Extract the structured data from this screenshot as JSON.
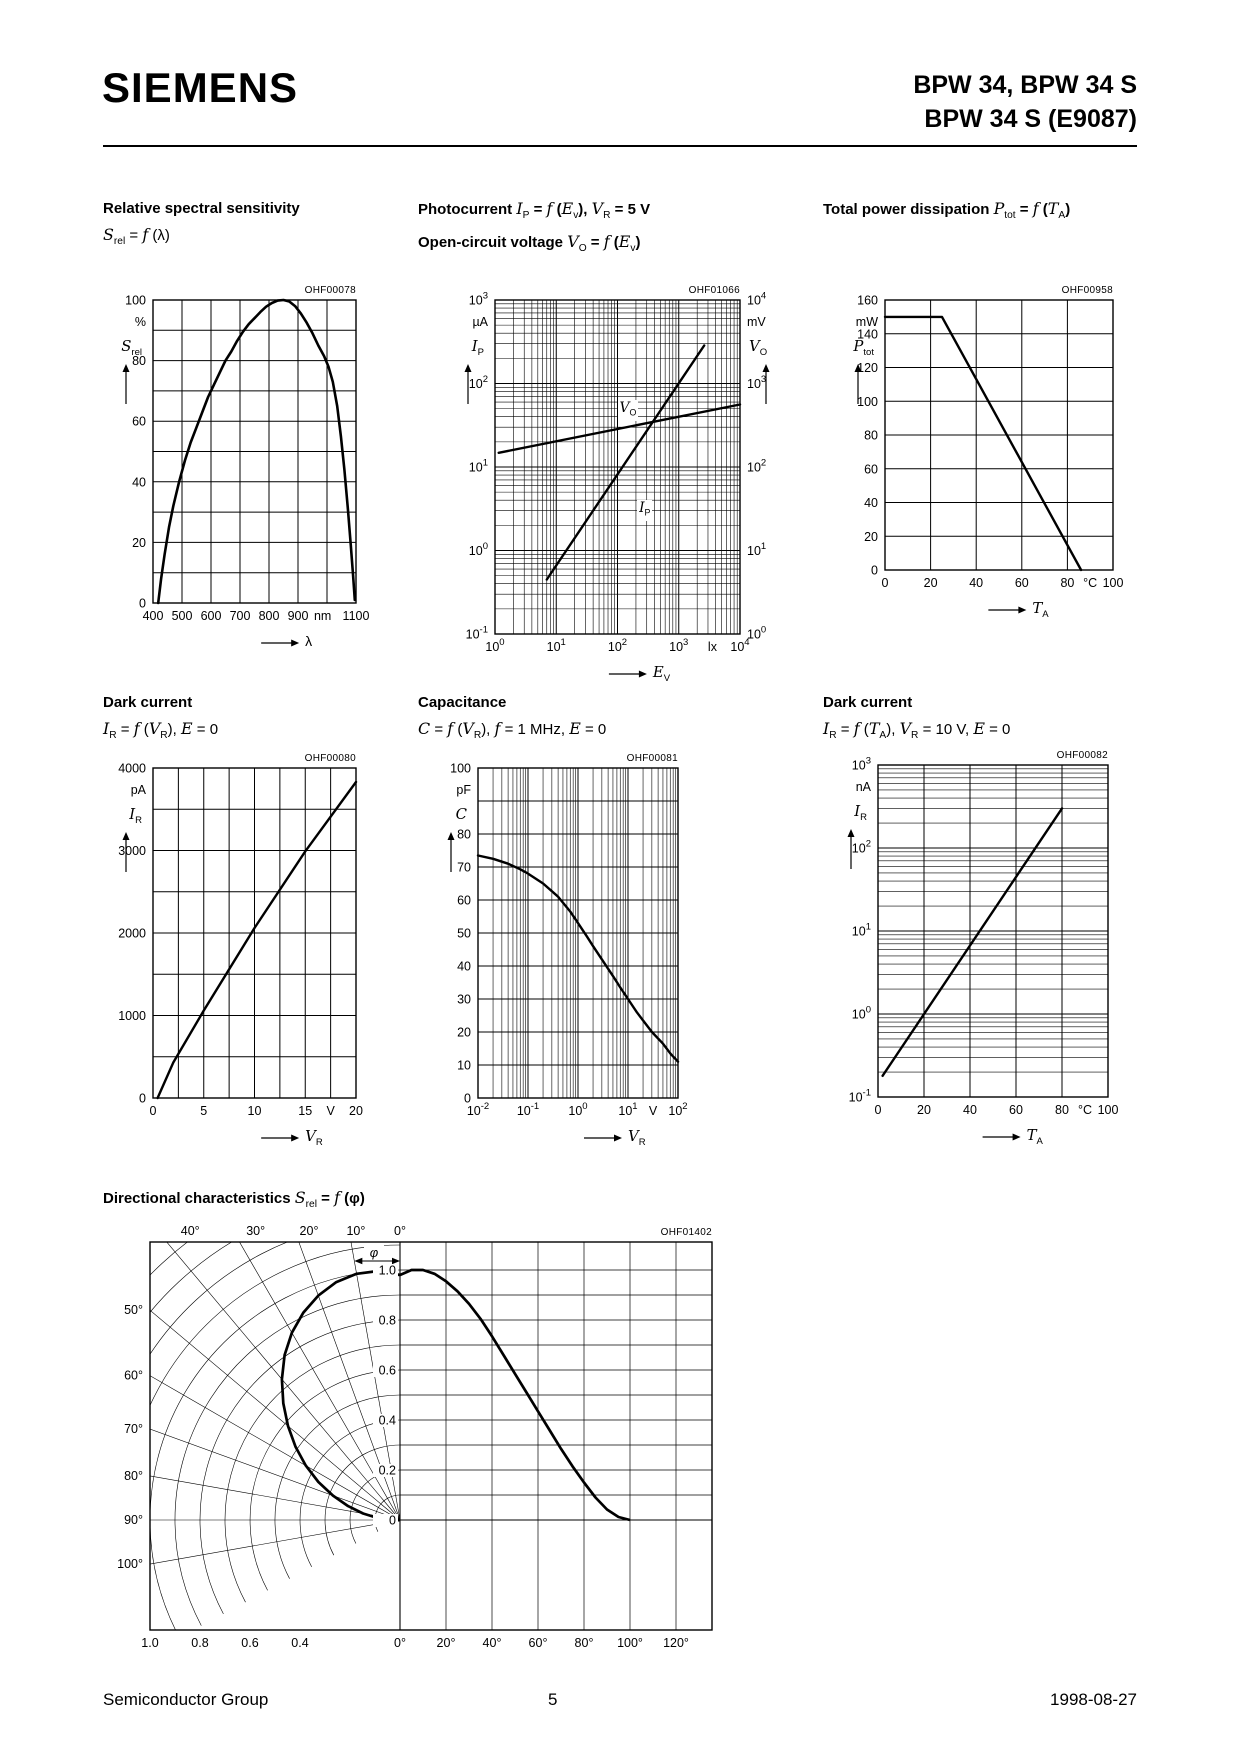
{
  "header": {
    "brand": "SIEMENS",
    "line1": "BPW 34, BPW 34 S",
    "line2": "BPW 34 S (E9087)"
  },
  "footer": {
    "left": "Semiconductor Group",
    "page": "5",
    "right": "1998-08-27"
  },
  "accent_color": "#000000",
  "chart_data": [
    {
      "key": "spectral",
      "type": "line",
      "code": "OHF00078",
      "title": "Relative spectral sensitivity",
      "subtitle": "*S*~rel~ = *f*  (λ)",
      "x": {
        "log": false,
        "min": 400,
        "max": 1100,
        "step": 100,
        "axis": "λ",
        "ticks": [
          {
            "v": 400,
            "t": "400"
          },
          {
            "v": 500,
            "t": "500"
          },
          {
            "v": 600,
            "t": "600"
          },
          {
            "v": 700,
            "t": "700"
          },
          {
            "v": 800,
            "t": "800"
          },
          {
            "v": 900,
            "t": "900"
          },
          {
            "v": 985,
            "t": "nm"
          },
          {
            "v": 1100,
            "t": "1100"
          }
        ]
      },
      "y": {
        "log": false,
        "min": 0,
        "max": 100,
        "step": 10,
        "unit": "%",
        "axis": "*S*~rel~",
        "ticks": [
          {
            "v": 100,
            "t": "100"
          },
          {
            "v": 80,
            "t": "80"
          },
          {
            "v": 60,
            "t": "60"
          },
          {
            "v": 40,
            "t": "40"
          },
          {
            "v": 20,
            "t": "20"
          },
          {
            "v": 0,
            "t": "0"
          }
        ]
      },
      "series": [
        {
          "name": "S_rel vs wavelength",
          "w": 2.6,
          "points": [
            [
              418,
              0
            ],
            [
              428,
              8
            ],
            [
              440,
              16
            ],
            [
              455,
              25
            ],
            [
              470,
              32
            ],
            [
              490,
              40
            ],
            [
              510,
              47
            ],
            [
              530,
              53
            ],
            [
              550,
              58
            ],
            [
              570,
              63
            ],
            [
              590,
              68
            ],
            [
              610,
              72
            ],
            [
              630,
              76
            ],
            [
              650,
              80
            ],
            [
              670,
              83
            ],
            [
              690,
              86.5
            ],
            [
              710,
              89.5
            ],
            [
              730,
              92
            ],
            [
              750,
              94
            ],
            [
              770,
              96
            ],
            [
              790,
              97.8
            ],
            [
              810,
              99
            ],
            [
              830,
              99.8
            ],
            [
              850,
              100
            ],
            [
              870,
              99.5
            ],
            [
              890,
              98
            ],
            [
              910,
              95.5
            ],
            [
              930,
              92.5
            ],
            [
              950,
              89
            ],
            [
              970,
              85
            ],
            [
              990,
              81.5
            ],
            [
              1005,
              78
            ],
            [
              1020,
              73
            ],
            [
              1035,
              65
            ],
            [
              1048,
              55
            ],
            [
              1060,
              44
            ],
            [
              1072,
              31
            ],
            [
              1082,
              19
            ],
            [
              1090,
              9
            ],
            [
              1096,
              1
            ]
          ]
        }
      ]
    },
    {
      "key": "photocurrent",
      "type": "line",
      "code": "OHF01066",
      "title": "Photocurrent *I*~P~ = *f*  (*E*~v~), *V*~R~ = 5 V",
      "subtitle": "Open-circuit voltage *V*~O~ = *f*  (*E*~v~)",
      "x": {
        "log": true,
        "min": 0,
        "max": 4,
        "axis": "*E*~V~",
        "ticks": [
          {
            "v": 0,
            "t": "10^0"
          },
          {
            "v": 1,
            "t": "10^1"
          },
          {
            "v": 2,
            "t": "10^2"
          },
          {
            "v": 3,
            "t": "10^3"
          },
          {
            "v": 3.55,
            "t": "lx"
          },
          {
            "v": 4,
            "t": "10^4"
          }
        ]
      },
      "y": {
        "log": true,
        "min": -1,
        "max": 3,
        "unit": "µA",
        "axis": "*I*~P~",
        "ticks": [
          {
            "v": 3,
            "t": "10^3"
          },
          {
            "v": 2,
            "t": "10^2"
          },
          {
            "v": 1,
            "t": "10^1"
          },
          {
            "v": 0,
            "t": "10^0"
          },
          {
            "v": -1,
            "t": "10^-1"
          }
        ]
      },
      "y2": {
        "log": true,
        "min": 0,
        "max": 4,
        "unit": "mV",
        "axis": "*V*~O~",
        "ticks": [
          {
            "v": 4,
            "t": "10^4"
          },
          {
            "v": 3,
            "t": "10^3"
          },
          {
            "v": 2,
            "t": "10^2"
          },
          {
            "v": 1,
            "t": "10^1"
          },
          {
            "v": 0,
            "t": "10^0"
          }
        ]
      },
      "series": [
        {
          "name": "I_P photocurrent",
          "w": 2.4,
          "points": [
            [
              7,
              0.45
            ],
            [
              2600,
              285
            ]
          ]
        },
        {
          "name": "V_O open-circuit voltage",
          "axis": "y2",
          "w": 2.4,
          "points": [
            [
              1.15,
              148
            ],
            [
              10000,
              560
            ]
          ]
        }
      ],
      "plot_labels": [
        {
          "t": "*V*~O~",
          "fx": 0.5,
          "fy": 0.3
        },
        {
          "t": "*I*~P~",
          "fx": 0.58,
          "fy": 0.6
        }
      ]
    },
    {
      "key": "power",
      "type": "line",
      "code": "OHF00958",
      "title": "Total power dissipation *P*~tot~ = *f*  (*T*~A~)",
      "x": {
        "log": false,
        "min": 0,
        "max": 100,
        "step": 20,
        "axis": "*T*~A~",
        "ticks": [
          {
            "v": 0,
            "t": "0"
          },
          {
            "v": 20,
            "t": "20"
          },
          {
            "v": 40,
            "t": "40"
          },
          {
            "v": 60,
            "t": "60"
          },
          {
            "v": 80,
            "t": "80"
          },
          {
            "v": 90,
            "t": "°C"
          },
          {
            "v": 100,
            "t": "100"
          }
        ]
      },
      "y": {
        "log": false,
        "min": 0,
        "max": 160,
        "step": 20,
        "unit": "mW",
        "axis": "*P*~tot~",
        "ticks": [
          {
            "v": 160,
            "t": "160"
          },
          {
            "v": 140,
            "t": "140"
          },
          {
            "v": 120,
            "t": "120"
          },
          {
            "v": 100,
            "t": "100"
          },
          {
            "v": 80,
            "t": "80"
          },
          {
            "v": 60,
            "t": "60"
          },
          {
            "v": 40,
            "t": "40"
          },
          {
            "v": 20,
            "t": "20"
          },
          {
            "v": 0,
            "t": "0"
          }
        ]
      },
      "series": [
        {
          "name": "P_tot derating",
          "w": 2.4,
          "points": [
            [
              0,
              150
            ],
            [
              25,
              150
            ],
            [
              86,
              0
            ]
          ]
        }
      ]
    },
    {
      "key": "dark-current-voltage",
      "type": "line",
      "code": "OHF00080",
      "title": "Dark current",
      "subtitle": "*I*~R~ = *f*  (*V*~R~),  *E* = 0",
      "x": {
        "log": false,
        "min": 0,
        "max": 20,
        "step": 2.5,
        "axis": "*V*~R~",
        "ticks": [
          {
            "v": 0,
            "t": "0"
          },
          {
            "v": 5,
            "t": "5"
          },
          {
            "v": 10,
            "t": "10"
          },
          {
            "v": 15,
            "t": "15"
          },
          {
            "v": 17.5,
            "t": "V"
          },
          {
            "v": 20,
            "t": "20"
          }
        ]
      },
      "y": {
        "log": false,
        "min": 0,
        "max": 4000,
        "step": 500,
        "unit": "pA",
        "axis": "*I*~R~",
        "ticks": [
          {
            "v": 4000,
            "t": "4000"
          },
          {
            "v": 3000,
            "t": "3000"
          },
          {
            "v": 2000,
            "t": "2000"
          },
          {
            "v": 1000,
            "t": "1000"
          },
          {
            "v": 0,
            "t": "0"
          }
        ]
      },
      "series": [
        {
          "name": "I_R vs V_R",
          "w": 2.4,
          "points": [
            [
              0.45,
              0
            ],
            [
              2,
              430
            ],
            [
              5,
              1060
            ],
            [
              10,
              2060
            ],
            [
              15,
              2990
            ],
            [
              20,
              3830
            ]
          ]
        }
      ]
    },
    {
      "key": "capacitance",
      "type": "line",
      "code": "OHF00081",
      "title": "Capacitance",
      "subtitle": "*C* = *f*  (*V*~R~), *f*  = 1 MHz, *E* = 0",
      "x": {
        "log": true,
        "min": -2,
        "max": 2,
        "axis": "*V*~R~",
        "ticks": [
          {
            "v": -2,
            "t": "10^-2"
          },
          {
            "v": -1,
            "t": "10^-1"
          },
          {
            "v": 0,
            "t": "10^0"
          },
          {
            "v": 1,
            "t": "10^1"
          },
          {
            "v": 1.5,
            "t": "V"
          },
          {
            "v": 2,
            "t": "10^2"
          }
        ]
      },
      "y": {
        "log": false,
        "min": 0,
        "max": 100,
        "step": 10,
        "unit": "pF",
        "axis": "*C*",
        "ticks": [
          {
            "v": 100,
            "t": "100"
          },
          {
            "v": 80,
            "t": "80"
          },
          {
            "v": 70,
            "t": "70"
          },
          {
            "v": 60,
            "t": "60"
          },
          {
            "v": 50,
            "t": "50"
          },
          {
            "v": 40,
            "t": "40"
          },
          {
            "v": 30,
            "t": "30"
          },
          {
            "v": 20,
            "t": "20"
          },
          {
            "v": 10,
            "t": "10"
          },
          {
            "v": 0,
            "t": "0"
          }
        ]
      },
      "series": [
        {
          "name": "C vs V_R",
          "w": 2.4,
          "points": [
            [
              0.01,
              73.5
            ],
            [
              0.02,
              72.5
            ],
            [
              0.04,
              71
            ],
            [
              0.07,
              69.3
            ],
            [
              0.1,
              68
            ],
            [
              0.2,
              65
            ],
            [
              0.4,
              61
            ],
            [
              0.7,
              56.5
            ],
            [
              1,
              53
            ],
            [
              1.5,
              49
            ],
            [
              2,
              46
            ],
            [
              3,
              42
            ],
            [
              5,
              37
            ],
            [
              7,
              33.5
            ],
            [
              10,
              30
            ],
            [
              15,
              26
            ],
            [
              20,
              23.5
            ],
            [
              30,
              20
            ],
            [
              50,
              16.5
            ],
            [
              70,
              13.5
            ],
            [
              100,
              11
            ]
          ]
        }
      ]
    },
    {
      "key": "dark-current-temperature",
      "type": "line",
      "code": "OHF00082",
      "title": "Dark current",
      "subtitle": "*I*~R~ = *f*  (*T*~A~),  *V*~R~ = 10 V, *E* = 0",
      "x": {
        "log": false,
        "min": 0,
        "max": 100,
        "step": 20,
        "axis": "*T*~A~",
        "ticks": [
          {
            "v": 0,
            "t": "0"
          },
          {
            "v": 20,
            "t": "20"
          },
          {
            "v": 40,
            "t": "40"
          },
          {
            "v": 60,
            "t": "60"
          },
          {
            "v": 80,
            "t": "80"
          },
          {
            "v": 90,
            "t": "°C"
          },
          {
            "v": 100,
            "t": "100"
          }
        ]
      },
      "y": {
        "log": true,
        "min": -1,
        "max": 3,
        "unit": "nA",
        "axis": "*I*~R~",
        "ticks": [
          {
            "v": 3,
            "t": "10^3"
          },
          {
            "v": 2,
            "t": "10^2"
          },
          {
            "v": 1,
            "t": "10^1"
          },
          {
            "v": 0,
            "t": "10^0"
          },
          {
            "v": -1,
            "t": "10^-1"
          }
        ]
      },
      "series": [
        {
          "name": "I_R vs T_A",
          "w": 2.4,
          "points": [
            [
              2,
              0.18
            ],
            [
              80,
              300
            ]
          ]
        }
      ]
    },
    {
      "key": "directional",
      "type": "polar-directional",
      "code": "OHF01402",
      "title": "Directional characteristics *S*~rel~ = *f*  (φ)",
      "phi_label": "φ",
      "rings": [
        0.1,
        0.2,
        0.3,
        0.4,
        0.5,
        0.6,
        0.7,
        0.8,
        0.9,
        1.0
      ],
      "rings_ext": [
        1.1,
        1.2,
        1.3,
        1.4
      ],
      "spoke_step": 10,
      "spoke_max": 100,
      "arc_sweep": 118,
      "cart_step": 20,
      "cart_max": 120,
      "top_angle_labels": [
        {
          "a": 40,
          "t": "40°"
        },
        {
          "a": 30,
          "t": "30°"
        },
        {
          "a": 20,
          "t": "20°"
        },
        {
          "a": 10,
          "t": "10°"
        },
        {
          "a": 0,
          "t": "0°"
        }
      ],
      "left_angle_labels": [
        {
          "a": 50,
          "t": "50°"
        },
        {
          "a": 60,
          "t": "60°"
        },
        {
          "a": 70,
          "t": "70°"
        },
        {
          "a": 80,
          "t": "80°"
        },
        {
          "a": 90,
          "t": "90°"
        },
        {
          "a": 100,
          "t": "100°"
        }
      ],
      "radial_labels": [
        {
          "v": 1.0,
          "t": "1.0"
        },
        {
          "v": 0.8,
          "t": "0.8"
        },
        {
          "v": 0.6,
          "t": "0.6"
        },
        {
          "v": 0.4,
          "t": "0.4"
        },
        {
          "v": 0.2,
          "t": "0.2"
        },
        {
          "v": 0,
          "t": "0"
        }
      ],
      "bottom_radial_labels": [
        {
          "v": 1.0,
          "t": "1.0"
        },
        {
          "v": 0.8,
          "t": "0.8"
        },
        {
          "v": 0.6,
          "t": "0.6"
        },
        {
          "v": 0.4,
          "t": "0.4"
        }
      ],
      "bottom_angle_labels": [
        {
          "a": 0,
          "t": "0°"
        },
        {
          "a": 20,
          "t": "20°"
        },
        {
          "a": 40,
          "t": "40°"
        },
        {
          "a": 60,
          "t": "60°"
        },
        {
          "a": 80,
          "t": "80°"
        },
        {
          "a": 100,
          "t": "100°"
        },
        {
          "a": 120,
          "t": "120°"
        }
      ],
      "series": [
        {
          "name": "S_rel vs phi",
          "points": [
            [
              0,
              0.98
            ],
            [
              5,
              1.0
            ],
            [
              10,
              1.0
            ],
            [
              15,
              0.985
            ],
            [
              20,
              0.955
            ],
            [
              25,
              0.915
            ],
            [
              30,
              0.865
            ],
            [
              35,
              0.805
            ],
            [
              40,
              0.735
            ],
            [
              45,
              0.66
            ],
            [
              50,
              0.585
            ],
            [
              55,
              0.51
            ],
            [
              60,
              0.435
            ],
            [
              65,
              0.36
            ],
            [
              70,
              0.285
            ],
            [
              75,
              0.215
            ],
            [
              80,
              0.15
            ],
            [
              85,
              0.09
            ],
            [
              90,
              0.042
            ],
            [
              95,
              0.012
            ],
            [
              100,
              0
            ]
          ]
        }
      ]
    }
  ]
}
